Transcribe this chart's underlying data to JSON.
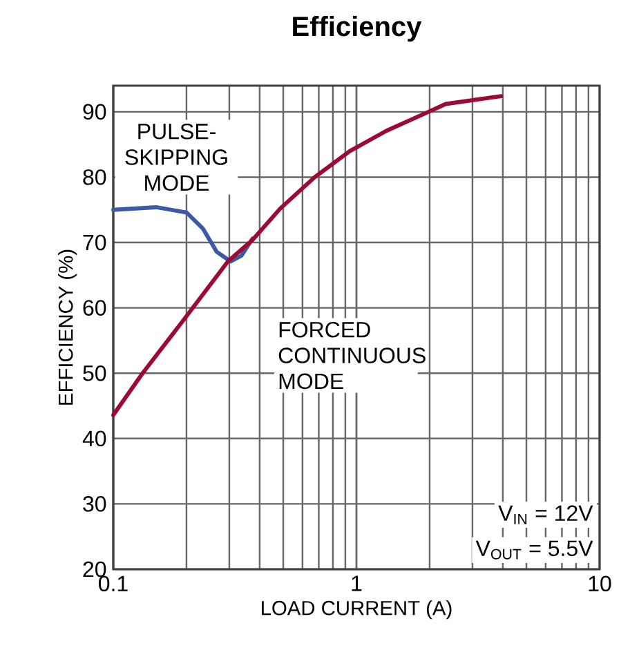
{
  "chart_data": {
    "type": "line",
    "title": "Efficiency",
    "xlabel": "LOAD CURRENT (A)",
    "ylabel": "EFFICIENCY (%)",
    "log": "x",
    "grid": true,
    "marker": "none",
    "line_style": "solid",
    "xlim": [
      0.1,
      10
    ],
    "ylim": [
      20,
      94
    ],
    "xticks": [
      0.1,
      1,
      10
    ],
    "yticks": [
      20,
      30,
      40,
      50,
      60,
      70,
      80,
      90
    ],
    "annotations": [
      "PULSE-SKIPPING MODE",
      "FORCED CONTINUOUS MODE",
      "V$_{IN}$ = 12V",
      "V$_{OUT}$ = 5.5V"
    ],
    "series": [
      {
        "color": "#3a5aa8",
        "x": [
          0.1,
          0.15,
          0.2,
          0.234,
          0.266,
          0.304,
          0.337,
          0.374
        ],
        "values": [
          75.0,
          75.4,
          74.6,
          72.1,
          68.6,
          67.1,
          68.0,
          70.6
        ]
      },
      {
        "color": "#9b0a34",
        "x": [
          0.1,
          0.132,
          0.197,
          0.296,
          0.374,
          0.486,
          0.674,
          0.94,
          1.33,
          1.98,
          2.33,
          3.94
        ],
        "values": [
          43.6,
          50.0,
          58.4,
          67.1,
          70.4,
          75.2,
          80.0,
          84.0,
          87.1,
          90.0,
          91.2,
          92.4
        ]
      }
    ]
  }
}
